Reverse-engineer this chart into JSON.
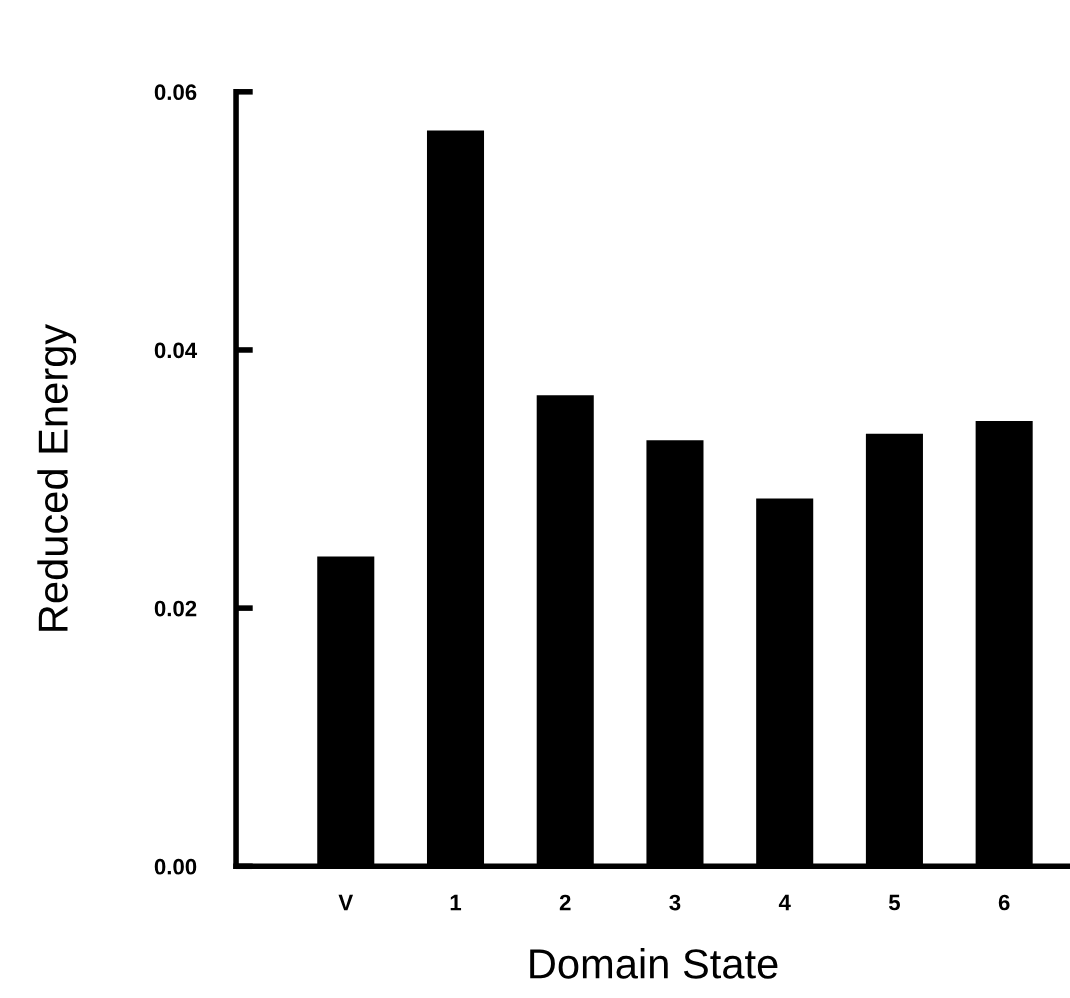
{
  "chart_data": {
    "type": "bar",
    "xlabel": "Domain State",
    "ylabel": "Reduced Energy",
    "categories": [
      "V",
      "1",
      "2",
      "3",
      "4",
      "5",
      "6"
    ],
    "values": [
      0.024,
      0.057,
      0.0365,
      0.033,
      0.0285,
      0.0335,
      0.0345
    ],
    "color": "#000000",
    "ylim": [
      0,
      0.06
    ],
    "yticks": [
      {
        "value": 0,
        "label": "0.00"
      },
      {
        "value": 0.02,
        "label": "0.02"
      },
      {
        "value": 0.04,
        "label": "0.04"
      },
      {
        "value": 0.06,
        "label": "0.06"
      }
    ],
    "grid": false,
    "legend": false
  }
}
